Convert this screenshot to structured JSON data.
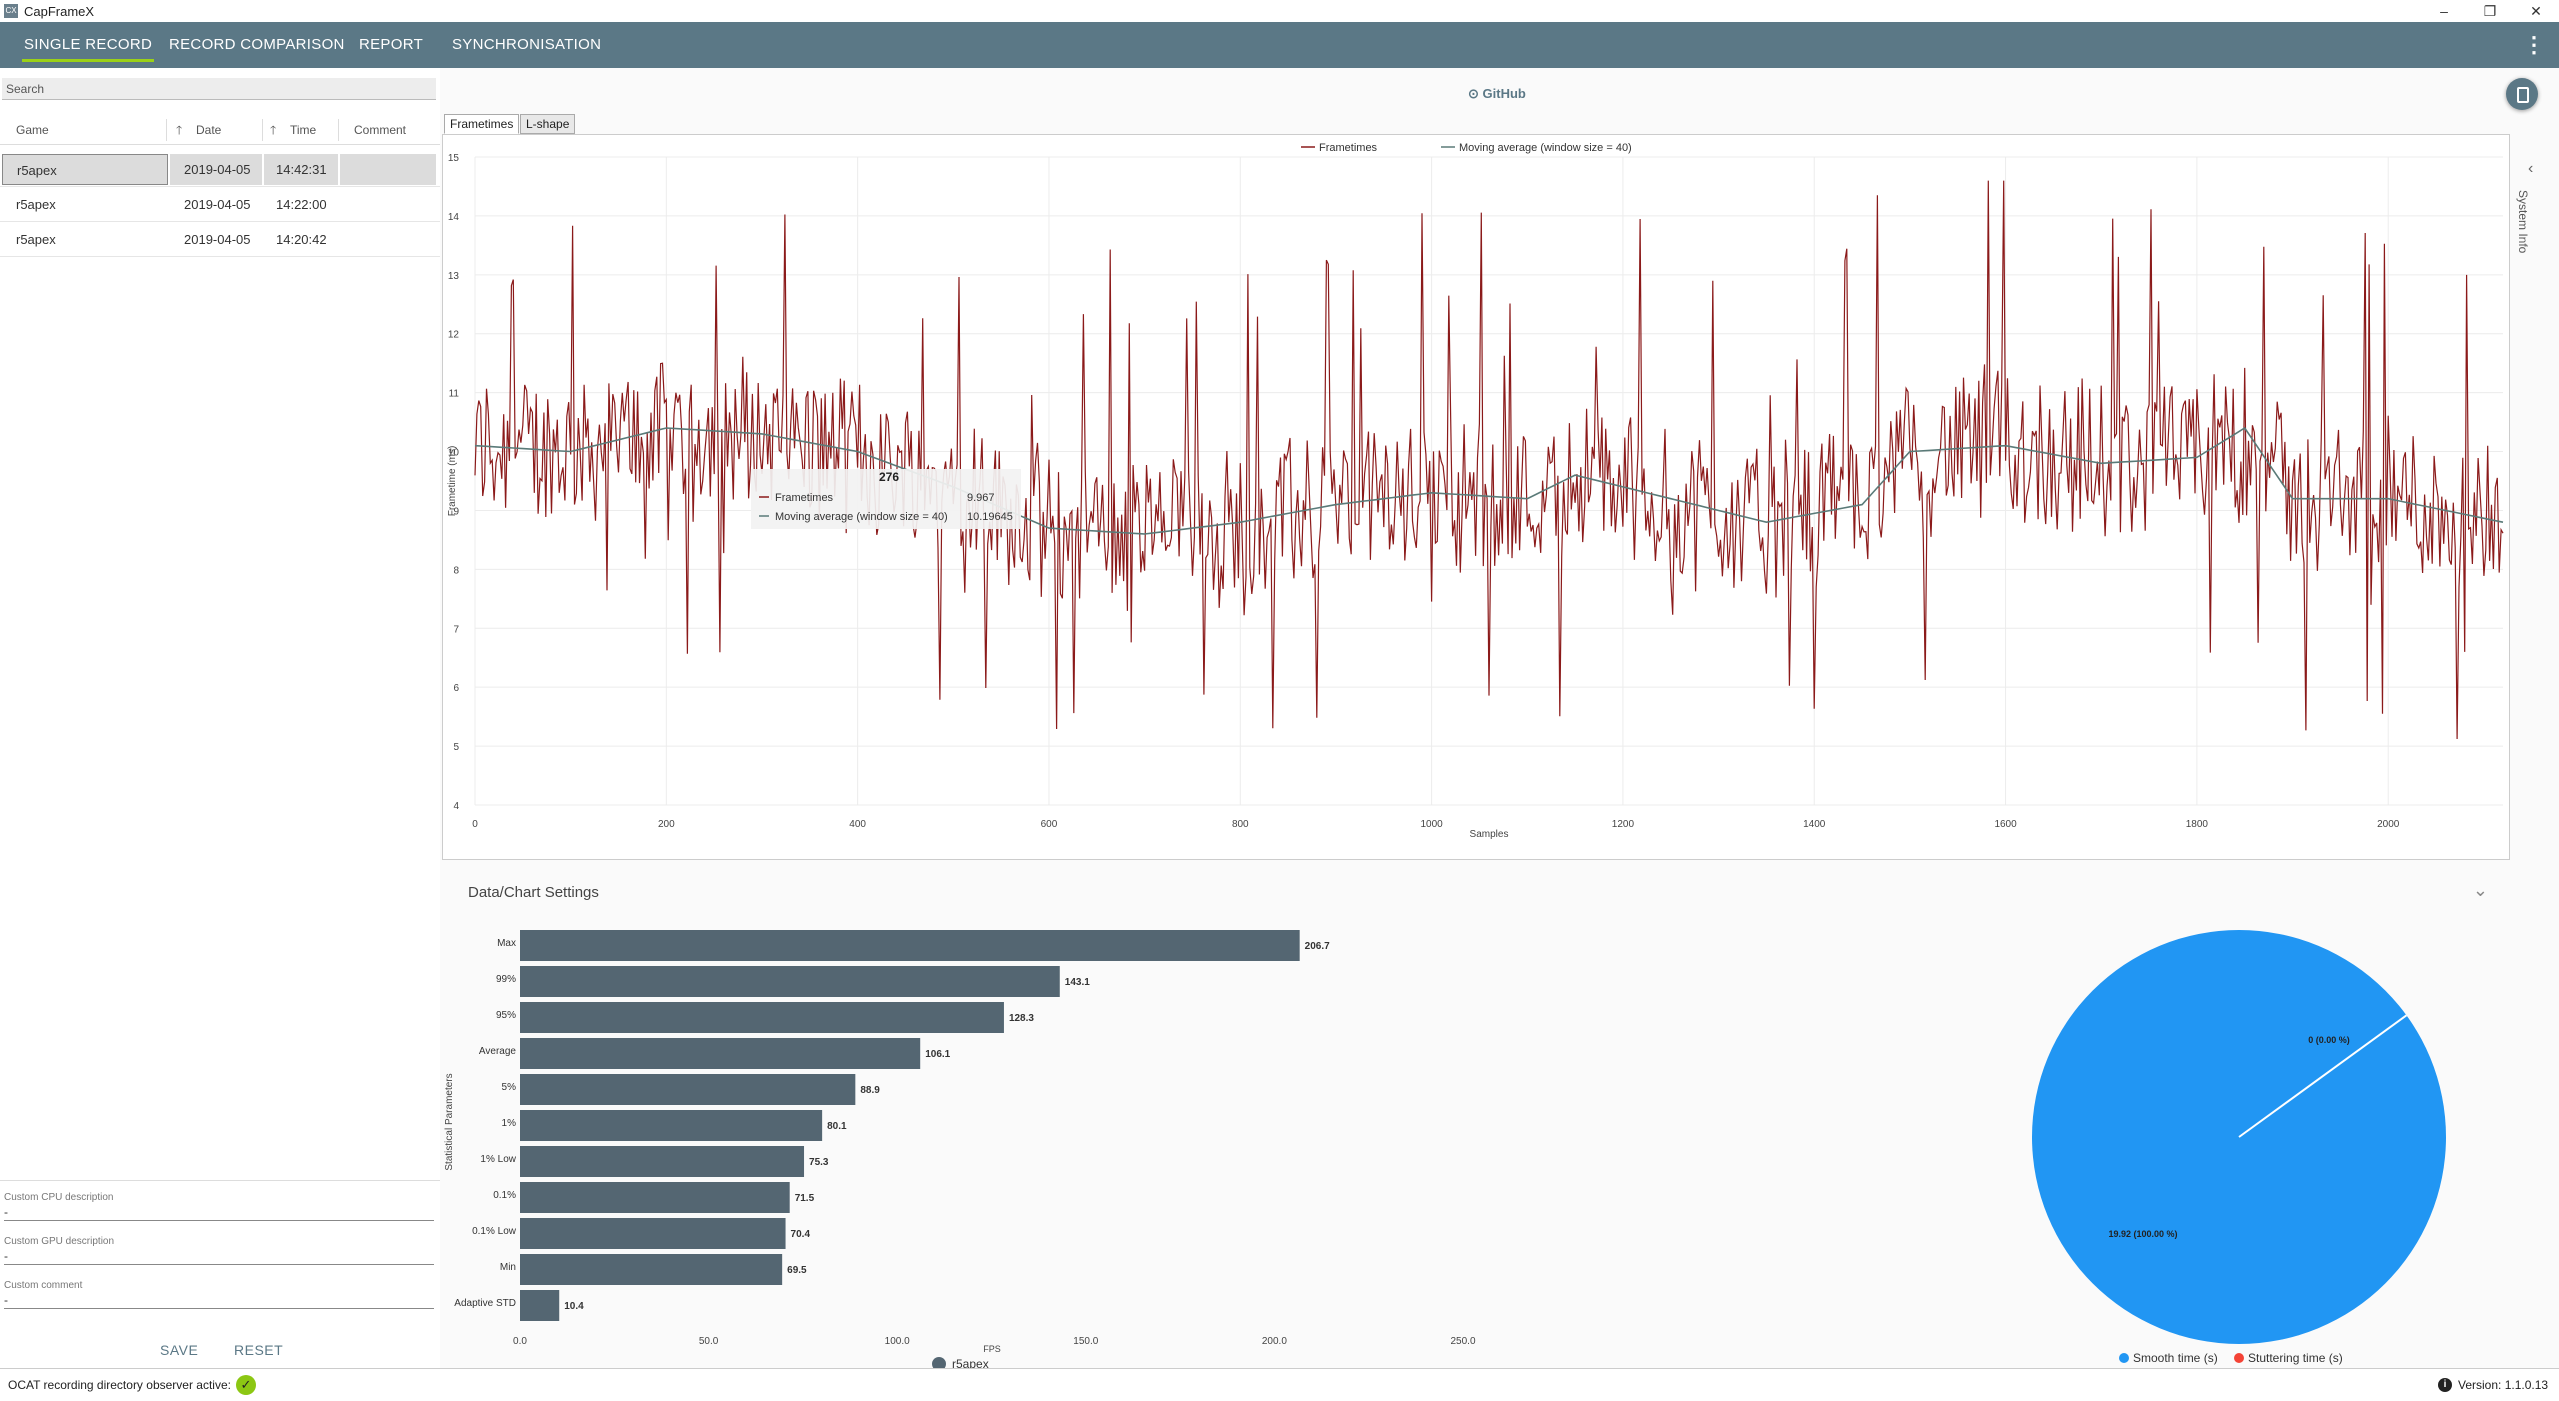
{
  "window": {
    "title": "CapFrameX",
    "logo": "CX",
    "minimize": "–",
    "restore": "❐",
    "close": "✕"
  },
  "nav": {
    "tabs": [
      "SINGLE RECORD",
      "RECORD COMPARISON",
      "REPORT",
      "SYNCHRONISATION"
    ],
    "active": 0,
    "menu_icon": "⋮"
  },
  "left_panel": {
    "search_placeholder": "Search",
    "columns": {
      "game": "Game",
      "date": "Date",
      "time": "Time",
      "comment": "Comment",
      "sort_icon": "🡑"
    },
    "records": [
      {
        "game": "r5apex",
        "date": "2019-04-05",
        "time": "14:42:31",
        "comment": ""
      },
      {
        "game": "r5apex",
        "date": "2019-04-05",
        "time": "14:22:00",
        "comment": ""
      },
      {
        "game": "r5apex",
        "date": "2019-04-05",
        "time": "14:20:42",
        "comment": ""
      }
    ],
    "custom_cpu_label": "Custom CPU description",
    "custom_cpu_value": "-",
    "custom_gpu_label": "Custom GPU description",
    "custom_gpu_value": "-",
    "custom_comment_label": "Custom comment",
    "custom_comment_value": "-",
    "save": "SAVE",
    "reset": "RESET"
  },
  "main": {
    "github": "GitHub",
    "github_icon": "⊙",
    "chart_tabs": [
      "Frametimes",
      "L-shape"
    ],
    "active_chart_tab": 0,
    "system_info": "System Info",
    "system_info_chevron": "‹",
    "settings_title": "Data/Chart Settings",
    "settings_chevron": "⌄"
  },
  "status": {
    "observer_text": "OCAT recording directory observer active:",
    "observer_icon": "✓",
    "version": "Version: 1.1.0.13",
    "version_icon": "i"
  },
  "chart_data": [
    {
      "type": "line",
      "xlabel": "Samples",
      "ylabel": "Frametime (ms)",
      "xlim": [
        0,
        2120
      ],
      "ylim": [
        4,
        15
      ],
      "xticks": [
        0,
        200,
        400,
        600,
        800,
        1000,
        1200,
        1400,
        1600,
        1800,
        2000
      ],
      "yticks": [
        4,
        5,
        6,
        7,
        8,
        9,
        10,
        11,
        12,
        13,
        14,
        15
      ],
      "legend": "top",
      "series": [
        {
          "name": "Frametimes",
          "color": "#8b1a1a"
        },
        {
          "name": "Moving average (window size = 40)",
          "color": "#5a7a78"
        }
      ],
      "moving_average_points": [
        [
          0,
          10.1
        ],
        [
          100,
          10.0
        ],
        [
          200,
          10.4
        ],
        [
          300,
          10.3
        ],
        [
          400,
          10.0
        ],
        [
          500,
          9.4
        ],
        [
          600,
          8.7
        ],
        [
          700,
          8.6
        ],
        [
          800,
          8.8
        ],
        [
          900,
          9.1
        ],
        [
          1000,
          9.3
        ],
        [
          1100,
          9.2
        ],
        [
          1150,
          9.6
        ],
        [
          1200,
          9.4
        ],
        [
          1300,
          9.0
        ],
        [
          1350,
          8.8
        ],
        [
          1450,
          9.1
        ],
        [
          1500,
          10.0
        ],
        [
          1600,
          10.1
        ],
        [
          1700,
          9.8
        ],
        [
          1800,
          9.9
        ],
        [
          1850,
          10.4
        ],
        [
          1900,
          9.2
        ],
        [
          2000,
          9.2
        ],
        [
          2120,
          8.8
        ]
      ],
      "tooltip": {
        "header": "276",
        "rows": [
          {
            "label": "Frametimes",
            "value": "9.967"
          },
          {
            "label": "Moving average (window size = 40)",
            "value": "10.19645"
          }
        ]
      }
    },
    {
      "type": "bar",
      "orientation": "horizontal",
      "xlabel": "FPS",
      "ylabel": "Statistical Parameters",
      "xlim": [
        0,
        250
      ],
      "xticks": [
        "0.0",
        "50.0",
        "100.0",
        "150.0",
        "200.0",
        "250.0"
      ],
      "categories": [
        "Max",
        "99%",
        "95%",
        "Average",
        "5%",
        "1%",
        "1% Low",
        "0.1%",
        "0.1% Low",
        "Min",
        "Adaptive STD"
      ],
      "values": [
        206.7,
        143.1,
        128.3,
        106.1,
        88.9,
        80.1,
        75.3,
        71.5,
        70.4,
        69.5,
        10.4
      ],
      "value_labels": [
        "206.7",
        "143.1",
        "128.3",
        "106.1",
        "88.9",
        "80.1",
        "75.3",
        "71.5",
        "70.4",
        "69.5",
        "10.4"
      ],
      "series": [
        {
          "name": "r5apex",
          "color": "#546672"
        }
      ],
      "legend": "bottom"
    },
    {
      "type": "pie",
      "slices": [
        {
          "name": "Smooth time (s)",
          "value": 19.92,
          "label": "19.92 (100.00 %)",
          "color": "#2196f3"
        },
        {
          "name": "Stuttering time (s)",
          "value": 0,
          "label": "0 (0.00 %)",
          "color": "#f44336"
        }
      ],
      "legend": "bottom"
    }
  ]
}
